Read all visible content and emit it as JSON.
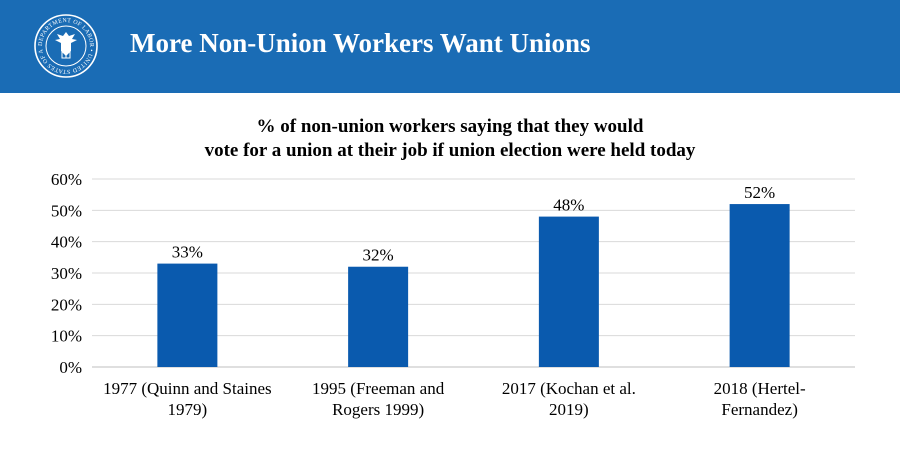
{
  "header": {
    "title": "More Non-Union Workers Want Unions",
    "seal_icon": "department-of-labor-seal",
    "seal_text": "DEPARTMENT OF LABOR • UNITED STATES OF AMERICA •"
  },
  "colors": {
    "header_bg": "#1a6cb5",
    "bar": "#0a5aae"
  },
  "chart_data": {
    "type": "bar",
    "title_lines": [
      "% of non-union workers saying that they would",
      "vote for a union at their job if union election were held today"
    ],
    "categories": [
      [
        "1977 (Quinn and Staines",
        "1979)"
      ],
      [
        "1995 (Freeman and",
        "Rogers 1999)"
      ],
      [
        "2017 (Kochan et al.",
        "2019)"
      ],
      [
        "2018 (Hertel-",
        "Fernandez)"
      ]
    ],
    "values": [
      33,
      32,
      48,
      52
    ],
    "data_labels": [
      "33%",
      "32%",
      "48%",
      "52%"
    ],
    "ylim": [
      0,
      60
    ],
    "yticks": [
      0,
      10,
      20,
      30,
      40,
      50,
      60
    ],
    "ytick_labels": [
      "0%",
      "10%",
      "20%",
      "30%",
      "40%",
      "50%",
      "60%"
    ],
    "xlabel": "",
    "ylabel": "",
    "grid": true,
    "legend": "none"
  }
}
